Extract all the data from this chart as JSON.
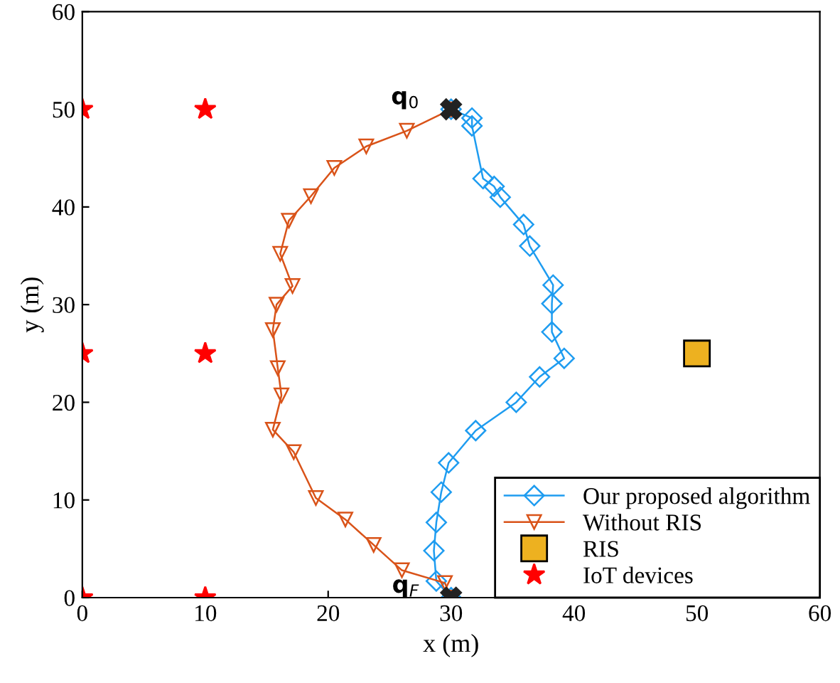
{
  "chart_data": {
    "type": "line",
    "xlabel": "x (m)",
    "ylabel": "y (m)",
    "xlim": [
      0,
      60
    ],
    "ylim": [
      0,
      60
    ],
    "xticks": [
      0,
      10,
      20,
      30,
      40,
      50,
      60
    ],
    "yticks": [
      0,
      10,
      20,
      30,
      40,
      50,
      60
    ],
    "grid": false,
    "legend": "bottom right",
    "series": [
      {
        "name": "Our proposed algorithm",
        "color": "#1e9cf0",
        "marker": "diamond",
        "x": [
          30,
          31.7,
          31.7,
          32.6,
          33.5,
          34.0,
          35.9,
          36.4,
          38.3,
          38.2,
          38.2,
          39.2,
          37.2,
          35.3,
          32.0,
          29.8,
          29.2,
          28.8,
          28.6,
          28.8,
          30
        ],
        "values": [
          50,
          49.1,
          48.3,
          42.9,
          42.1,
          41.0,
          38.2,
          36.0,
          32.0,
          30.1,
          27.2,
          24.5,
          22.6,
          20.0,
          17.1,
          13.8,
          10.8,
          7.7,
          4.8,
          1.7,
          0
        ]
      },
      {
        "name": "Without RIS",
        "color": "#d95319",
        "marker": "triangle_down",
        "x": [
          30,
          26.4,
          23.1,
          20.5,
          18.6,
          16.8,
          16.1,
          17.1,
          15.8,
          15.5,
          15.9,
          16.2,
          15.5,
          17.2,
          19.0,
          21.4,
          23.7,
          26.0,
          29.5,
          30
        ],
        "values": [
          50,
          47.8,
          46.2,
          44.0,
          41.1,
          38.6,
          35.2,
          31.9,
          30.0,
          27.4,
          23.5,
          20.7,
          17.2,
          14.9,
          10.2,
          8.0,
          5.4,
          2.8,
          1.5,
          0
        ]
      },
      {
        "name": "RIS",
        "type": "scatter",
        "color": "#edb120",
        "marker": "square",
        "x": [
          50
        ],
        "values": [
          25
        ]
      },
      {
        "name": "IoT devices",
        "type": "scatter",
        "color": "#ff0000",
        "marker": "star",
        "x": [
          0,
          10,
          0,
          10,
          0,
          10
        ],
        "values": [
          50,
          50,
          25,
          25,
          0,
          0
        ]
      },
      {
        "type": "scatter",
        "color": "#222222",
        "marker": "cross",
        "x": [
          30,
          30
        ],
        "values": [
          50,
          0
        ]
      }
    ],
    "annotations": [
      {
        "text": "q$_{0}$",
        "x": 30,
        "y": 50
      },
      {
        "text": "q$_{F}$",
        "x": 30,
        "y": 0
      }
    ]
  }
}
